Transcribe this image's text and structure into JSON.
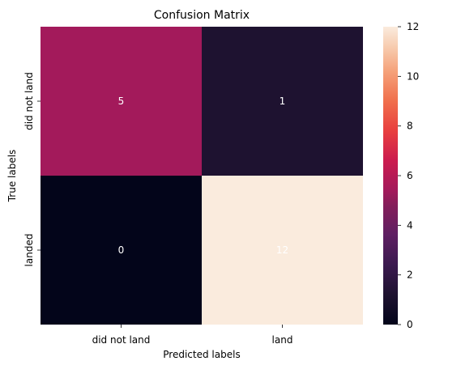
{
  "chart_data": {
    "type": "heatmap",
    "title": "Confusion Matrix",
    "xlabel": "Predicted labels",
    "ylabel": "True labels",
    "x_categories": [
      "did not land",
      "land"
    ],
    "y_categories": [
      "did not land",
      "landed"
    ],
    "values": [
      [
        5,
        1
      ],
      [
        0,
        12
      ]
    ],
    "colorbar": {
      "min": 0,
      "max": 12,
      "ticks": [
        0,
        2,
        4,
        6,
        8,
        10,
        12
      ],
      "colormap": "rocket"
    },
    "cell_colors": [
      [
        "#A31A5B",
        "#1E1230"
      ],
      [
        "#03051A",
        "#FAEBDD"
      ]
    ],
    "annotation_color": "#ffffff"
  }
}
